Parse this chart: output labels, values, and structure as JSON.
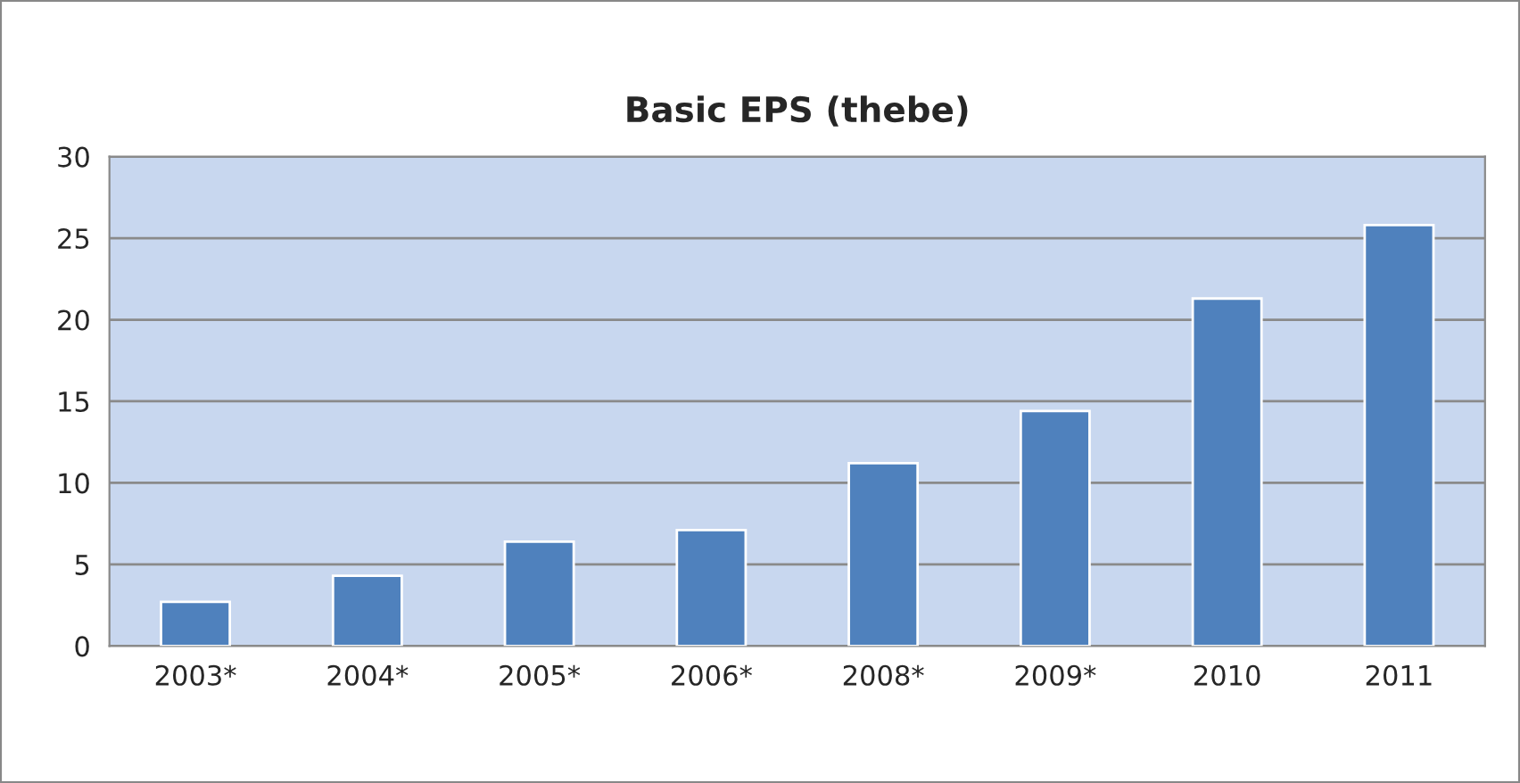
{
  "chart_data": {
    "type": "bar",
    "title": "Basic EPS (thebe)",
    "categories": [
      "2003*",
      "2004*",
      "2005*",
      "2006*",
      "2008*",
      "2009*",
      "2010",
      "2011"
    ],
    "values": [
      2.7,
      4.3,
      6.4,
      7.1,
      11.2,
      14.4,
      21.3,
      25.8
    ],
    "color": "#4f81bd",
    "ylim": [
      0,
      30
    ],
    "yticks": [
      0,
      5,
      10,
      15,
      20,
      25,
      30
    ],
    "grid": "y",
    "legend": false
  }
}
